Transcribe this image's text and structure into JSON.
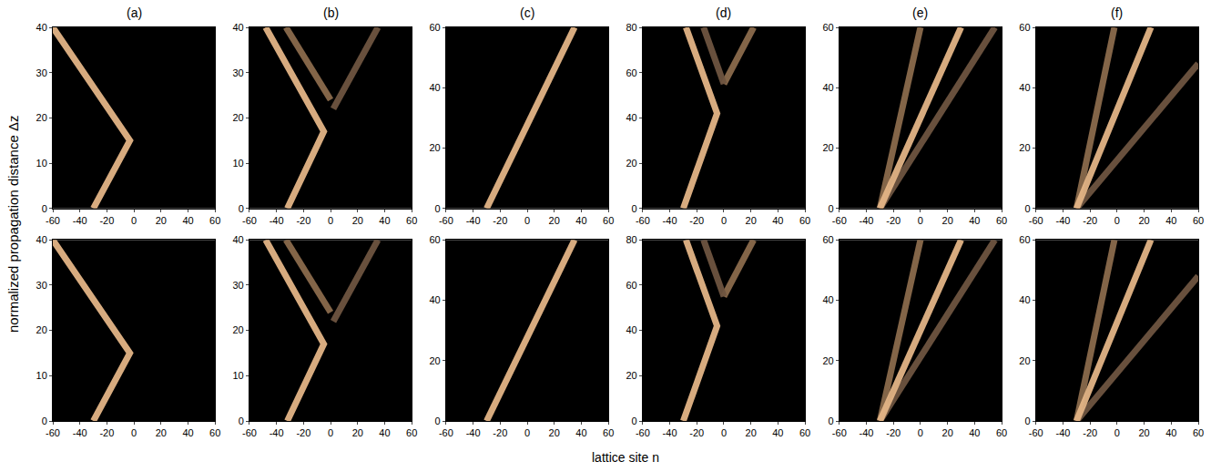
{
  "xlabel": "lattice site n",
  "ylabel": "normalized propagation distance Δz",
  "chart_data": [
    {
      "type": "line",
      "title": "(a)",
      "xlim": [
        -60,
        60
      ],
      "xticks": [
        -60,
        -40,
        -20,
        0,
        20,
        40,
        60
      ],
      "ylim": [
        0,
        40
      ],
      "yticks": [
        0,
        10,
        20,
        30,
        40
      ],
      "grid": false,
      "series": [
        {
          "color": "#e3b486",
          "x": [
            -30,
            -3,
            -60
          ],
          "values": [
            0,
            15,
            40
          ]
        }
      ]
    },
    {
      "type": "line",
      "title": "(b)",
      "xlim": [
        -60,
        60
      ],
      "xticks": [
        -60,
        -40,
        -20,
        0,
        20,
        40,
        60
      ],
      "ylim": [
        0,
        40
      ],
      "yticks": [
        0,
        10,
        20,
        30,
        40
      ],
      "grid": false,
      "series": [
        {
          "color": "#e3b486",
          "x": [
            -32,
            -5,
            -48
          ],
          "values": [
            0,
            17,
            40
          ]
        },
        {
          "color": "#8a6a4c",
          "x": [
            0,
            -33
          ],
          "values": [
            24,
            40
          ]
        },
        {
          "color": "#6e5440",
          "x": [
            2,
            35
          ],
          "values": [
            22,
            40
          ]
        }
      ]
    },
    {
      "type": "line",
      "title": "(c)",
      "xlim": [
        -60,
        60
      ],
      "xticks": [
        -60,
        -40,
        -20,
        0,
        20,
        40,
        60
      ],
      "ylim": [
        0,
        60
      ],
      "yticks": [
        0,
        20,
        40,
        60
      ],
      "grid": false,
      "series": [
        {
          "color": "#e3b486",
          "x": [
            -30,
            35
          ],
          "values": [
            0,
            60
          ]
        }
      ]
    },
    {
      "type": "line",
      "title": "(d)",
      "xlim": [
        -60,
        60
      ],
      "xticks": [
        -60,
        -40,
        -20,
        0,
        20,
        40,
        60
      ],
      "ylim": [
        0,
        80
      ],
      "yticks": [
        0,
        20,
        40,
        60,
        80
      ],
      "grid": false,
      "series": [
        {
          "color": "#e3b486",
          "x": [
            -30,
            -5,
            -28
          ],
          "values": [
            0,
            42,
            80
          ]
        },
        {
          "color": "#8a6a4c",
          "x": [
            0,
            22
          ],
          "values": [
            55,
            80
          ]
        },
        {
          "color": "#6e5440",
          "x": [
            0,
            -15
          ],
          "values": [
            55,
            80
          ]
        }
      ]
    },
    {
      "type": "line",
      "title": "(e)",
      "xlim": [
        -60,
        60
      ],
      "xticks": [
        -60,
        -40,
        -20,
        0,
        20,
        40,
        60
      ],
      "ylim": [
        0,
        60
      ],
      "yticks": [
        0,
        20,
        40,
        60
      ],
      "grid": false,
      "series": [
        {
          "color": "#6e5440",
          "x": [
            -30,
            55
          ],
          "values": [
            0,
            60
          ]
        },
        {
          "color": "#8a6a4c",
          "x": [
            -30,
            0
          ],
          "values": [
            0,
            60
          ]
        },
        {
          "color": "#e3b486",
          "x": [
            -30,
            30
          ],
          "values": [
            0,
            60
          ]
        }
      ]
    },
    {
      "type": "line",
      "title": "(f)",
      "xlim": [
        -60,
        60
      ],
      "xticks": [
        -60,
        -40,
        -20,
        0,
        20,
        40,
        60
      ],
      "ylim": [
        0,
        60
      ],
      "yticks": [
        0,
        20,
        40,
        60
      ],
      "grid": false,
      "series": [
        {
          "color": "#6e5440",
          "x": [
            -30,
            60
          ],
          "values": [
            0,
            48
          ]
        },
        {
          "color": "#8a6a4c",
          "x": [
            -30,
            -2
          ],
          "values": [
            0,
            60
          ]
        },
        {
          "color": "#e3b486",
          "x": [
            -30,
            25
          ],
          "values": [
            0,
            60
          ]
        }
      ]
    },
    {
      "type": "line",
      "xlim": [
        -60,
        60
      ],
      "xticks": [
        -60,
        -40,
        -20,
        0,
        20,
        40,
        60
      ],
      "ylim": [
        0,
        40
      ],
      "yticks": [
        0,
        10,
        20,
        30,
        40
      ],
      "grid": false,
      "series": [
        {
          "color": "#e3b486",
          "x": [
            -30,
            -3,
            -60
          ],
          "values": [
            0,
            15,
            40
          ]
        }
      ]
    },
    {
      "type": "line",
      "xlim": [
        -60,
        60
      ],
      "xticks": [
        -60,
        -40,
        -20,
        0,
        20,
        40,
        60
      ],
      "ylim": [
        0,
        40
      ],
      "yticks": [
        0,
        10,
        20,
        30,
        40
      ],
      "grid": false,
      "series": [
        {
          "color": "#e3b486",
          "x": [
            -32,
            -5,
            -48
          ],
          "values": [
            0,
            17,
            40
          ]
        },
        {
          "color": "#8a6a4c",
          "x": [
            0,
            -33
          ],
          "values": [
            24,
            40
          ]
        },
        {
          "color": "#6e5440",
          "x": [
            2,
            35
          ],
          "values": [
            22,
            40
          ]
        }
      ]
    },
    {
      "type": "line",
      "xlim": [
        -60,
        60
      ],
      "xticks": [
        -60,
        -40,
        -20,
        0,
        20,
        40,
        60
      ],
      "ylim": [
        0,
        60
      ],
      "yticks": [
        0,
        20,
        40,
        60
      ],
      "grid": false,
      "series": [
        {
          "color": "#e3b486",
          "x": [
            -30,
            35
          ],
          "values": [
            0,
            60
          ]
        }
      ]
    },
    {
      "type": "line",
      "xlim": [
        -60,
        60
      ],
      "xticks": [
        -60,
        -40,
        -20,
        0,
        20,
        40,
        60
      ],
      "ylim": [
        0,
        80
      ],
      "yticks": [
        0,
        20,
        40,
        60,
        80
      ],
      "grid": false,
      "series": [
        {
          "color": "#e3b486",
          "x": [
            -30,
            -5,
            -28
          ],
          "values": [
            0,
            42,
            80
          ]
        },
        {
          "color": "#8a6a4c",
          "x": [
            0,
            22
          ],
          "values": [
            55,
            80
          ]
        },
        {
          "color": "#6e5440",
          "x": [
            0,
            -15
          ],
          "values": [
            55,
            80
          ]
        }
      ]
    },
    {
      "type": "line",
      "xlim": [
        -60,
        60
      ],
      "xticks": [
        -60,
        -40,
        -20,
        0,
        20,
        40,
        60
      ],
      "ylim": [
        0,
        60
      ],
      "yticks": [
        0,
        20,
        40,
        60
      ],
      "grid": false,
      "series": [
        {
          "color": "#6e5440",
          "x": [
            -30,
            55
          ],
          "values": [
            0,
            60
          ]
        },
        {
          "color": "#8a6a4c",
          "x": [
            -30,
            0
          ],
          "values": [
            0,
            60
          ]
        },
        {
          "color": "#e3b486",
          "x": [
            -30,
            30
          ],
          "values": [
            0,
            60
          ]
        }
      ]
    },
    {
      "type": "line",
      "xlim": [
        -60,
        60
      ],
      "xticks": [
        -60,
        -40,
        -20,
        0,
        20,
        40,
        60
      ],
      "ylim": [
        0,
        60
      ],
      "yticks": [
        0,
        20,
        40,
        60
      ],
      "grid": false,
      "series": [
        {
          "color": "#6e5440",
          "x": [
            -30,
            60
          ],
          "values": [
            0,
            48
          ]
        },
        {
          "color": "#8a6a4c",
          "x": [
            -30,
            -2
          ],
          "values": [
            0,
            60
          ]
        },
        {
          "color": "#e3b486",
          "x": [
            -30,
            25
          ],
          "values": [
            0,
            60
          ]
        }
      ]
    }
  ]
}
